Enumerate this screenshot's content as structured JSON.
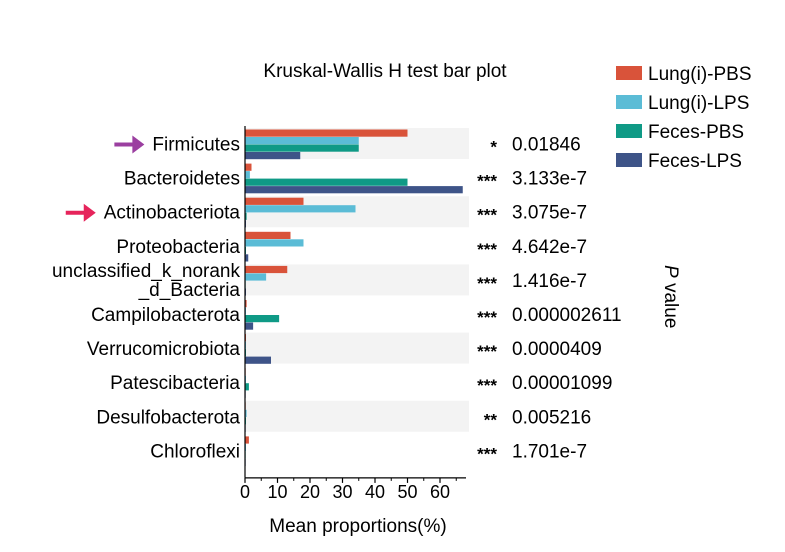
{
  "chart_data": {
    "type": "bar",
    "orientation": "horizontal",
    "title": "Kruskal-Wallis H test bar plot",
    "xlabel": "Mean proportions(%)",
    "xlim": [
      0,
      68
    ],
    "xticks": [
      "0",
      "10",
      "20",
      "30",
      "40",
      "50",
      "60"
    ],
    "p_axis_label": {
      "italic": "P",
      "rest": " value"
    },
    "categories": [
      {
        "lines": [
          "Firmicutes"
        ],
        "arrow": "#9b3fa0"
      },
      {
        "lines": [
          "Bacteroidetes"
        ]
      },
      {
        "lines": [
          "Actinobacteriota"
        ],
        "arrow": "#e6245b"
      },
      {
        "lines": [
          "Proteobacteria"
        ]
      },
      {
        "lines": [
          "unclassified_k_norank",
          "_d_Bacteria"
        ]
      },
      {
        "lines": [
          "Campilobacterota"
        ]
      },
      {
        "lines": [
          "Verrucomicrobiota"
        ]
      },
      {
        "lines": [
          "Patescibacteria"
        ]
      },
      {
        "lines": [
          "Desulfobacterota"
        ]
      },
      {
        "lines": [
          "Chloroflexi"
        ]
      }
    ],
    "series": [
      {
        "name": "Lung(i)-PBS",
        "color": "#d9533a",
        "values": [
          50,
          2,
          18,
          14,
          13,
          0.5,
          0.3,
          0.2,
          0.2,
          1.2
        ]
      },
      {
        "name": "Lung(i)-LPS",
        "color": "#5bbcd6",
        "values": [
          35,
          1.5,
          34,
          18,
          6.5,
          0.3,
          0.3,
          0.3,
          0.5,
          0.3
        ]
      },
      {
        "name": "Feces-PBS",
        "color": "#0f9a86",
        "values": [
          35,
          50,
          0.5,
          0.3,
          0.2,
          10.5,
          0.3,
          1.2,
          0.3,
          0.2
        ]
      },
      {
        "name": "Feces-LPS",
        "color": "#3e5488",
        "values": [
          17,
          67,
          0.3,
          1,
          0.3,
          2.5,
          8,
          0.2,
          0.2,
          0.2
        ]
      }
    ],
    "significance": [
      "*",
      "***",
      "***",
      "***",
      "***",
      "***",
      "***",
      "***",
      "**",
      "***"
    ],
    "p_values": [
      "0.01846",
      "3.133e-7",
      "3.075e-7",
      "4.642e-7",
      "1.416e-7",
      "0.000002611",
      "0.0000409",
      "0.00001099",
      "0.005216",
      "1.701e-7"
    ],
    "grid": false,
    "legend_position": "top-right",
    "row_band_color": "#f3f3f3"
  }
}
